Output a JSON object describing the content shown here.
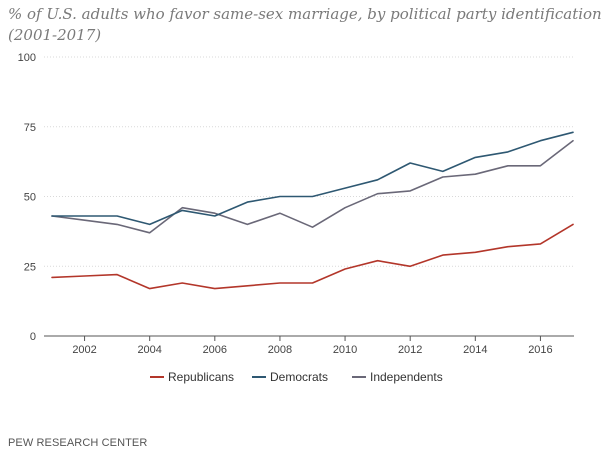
{
  "title_line1": "% of U.S. adults who favor same-sex marriage, by political party identification",
  "title_line2": "(2001-2017)",
  "source": "PEW RESEARCH CENTER",
  "chart_data": {
    "type": "line",
    "title": "% of U.S. adults who favor same-sex marriage, by political party identification (2001-2017)",
    "xlabel": "",
    "ylabel": "",
    "x": [
      2001,
      2002,
      2003,
      2004,
      2005,
      2006,
      2007,
      2008,
      2009,
      2010,
      2011,
      2012,
      2013,
      2014,
      2015,
      2016,
      2017
    ],
    "xlim": [
      2001,
      2017
    ],
    "xticks": [
      2002,
      2004,
      2006,
      2008,
      2010,
      2012,
      2014,
      2016
    ],
    "ylim": [
      0,
      100
    ],
    "yticks": [
      0,
      25,
      50,
      75,
      100
    ],
    "grid": true,
    "legend_position": "bottom-center",
    "series": [
      {
        "name": "Republicans",
        "color": "#b3362a",
        "values": [
          21,
          21.5,
          22,
          17,
          19,
          17,
          18,
          19,
          19,
          24,
          27,
          25,
          29,
          30,
          32,
          33,
          40
        ]
      },
      {
        "name": "Democrats",
        "color": "#2e5872",
        "values": [
          43,
          43,
          43,
          40,
          45,
          43,
          48,
          50,
          50,
          53,
          56,
          62,
          59,
          64,
          66,
          70,
          73
        ]
      },
      {
        "name": "Independents",
        "color": "#6a6878",
        "values": [
          43,
          41.5,
          40,
          37,
          46,
          44,
          40,
          44,
          39,
          46,
          51,
          52,
          57,
          58,
          61,
          61,
          70
        ]
      }
    ]
  }
}
